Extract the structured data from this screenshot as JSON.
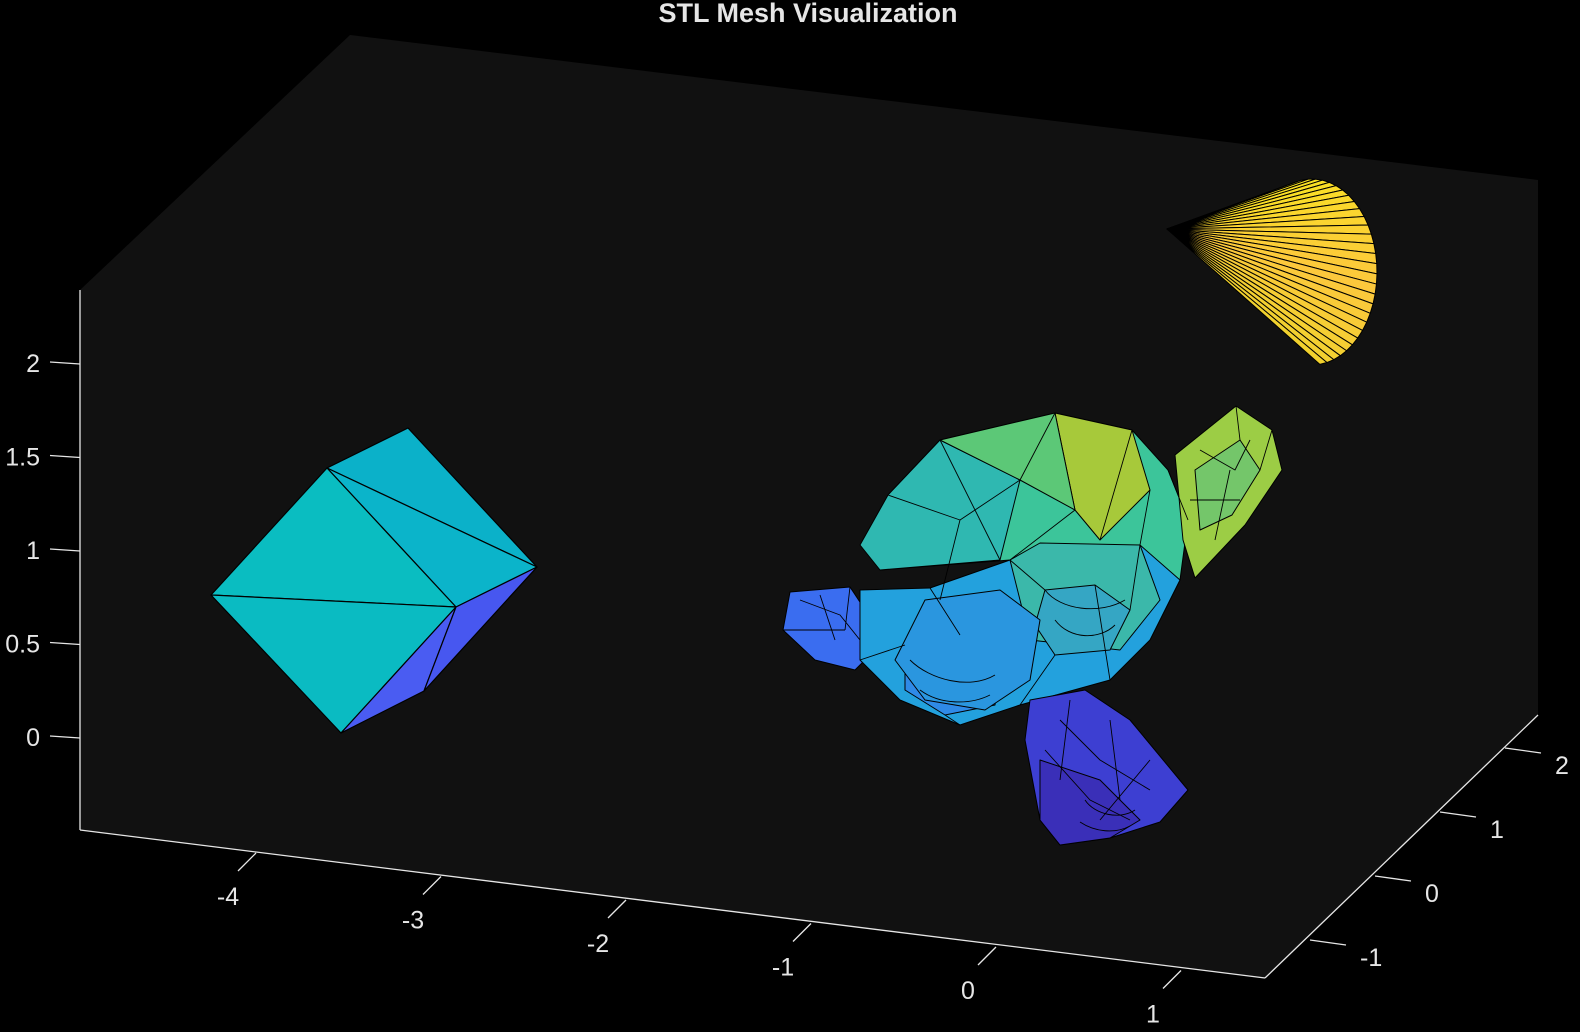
{
  "chart_data": {
    "type": "mesh3d",
    "title": "STL Mesh Visualization",
    "xlabel": "",
    "ylabel": "",
    "zlabel": "",
    "x_ticks": [
      "-4",
      "-3",
      "-2",
      "-1",
      "0",
      "1"
    ],
    "y_ticks": [
      "-1",
      "0",
      "1",
      "2"
    ],
    "z_ticks": [
      "0",
      "0.5",
      "1",
      "1.5",
      "2"
    ],
    "xlim": [
      -5,
      1.5
    ],
    "ylim": [
      -1.5,
      2.4
    ],
    "zlim": [
      -0.5,
      2.5
    ],
    "background": "#111111",
    "figure_background": "#000000",
    "colormap": "parula",
    "edge_color": "#000000",
    "objects": [
      {
        "name": "octahedron",
        "center": [
          -3.5,
          0,
          1
        ],
        "colors": [
          "#0bb1c9",
          "#0abcc1",
          "#4a5cf2"
        ]
      },
      {
        "name": "suzanne",
        "center": [
          0,
          0,
          1
        ],
        "colors": [
          "#3a6df0",
          "#1fa6da",
          "#3cc59a",
          "#95c93a",
          "#3a33c7"
        ]
      },
      {
        "name": "cone",
        "center": [
          1.5,
          1.5,
          2
        ],
        "colors": [
          "#f9e61e",
          "#fcc63c",
          "#f0bd3a"
        ]
      }
    ]
  }
}
